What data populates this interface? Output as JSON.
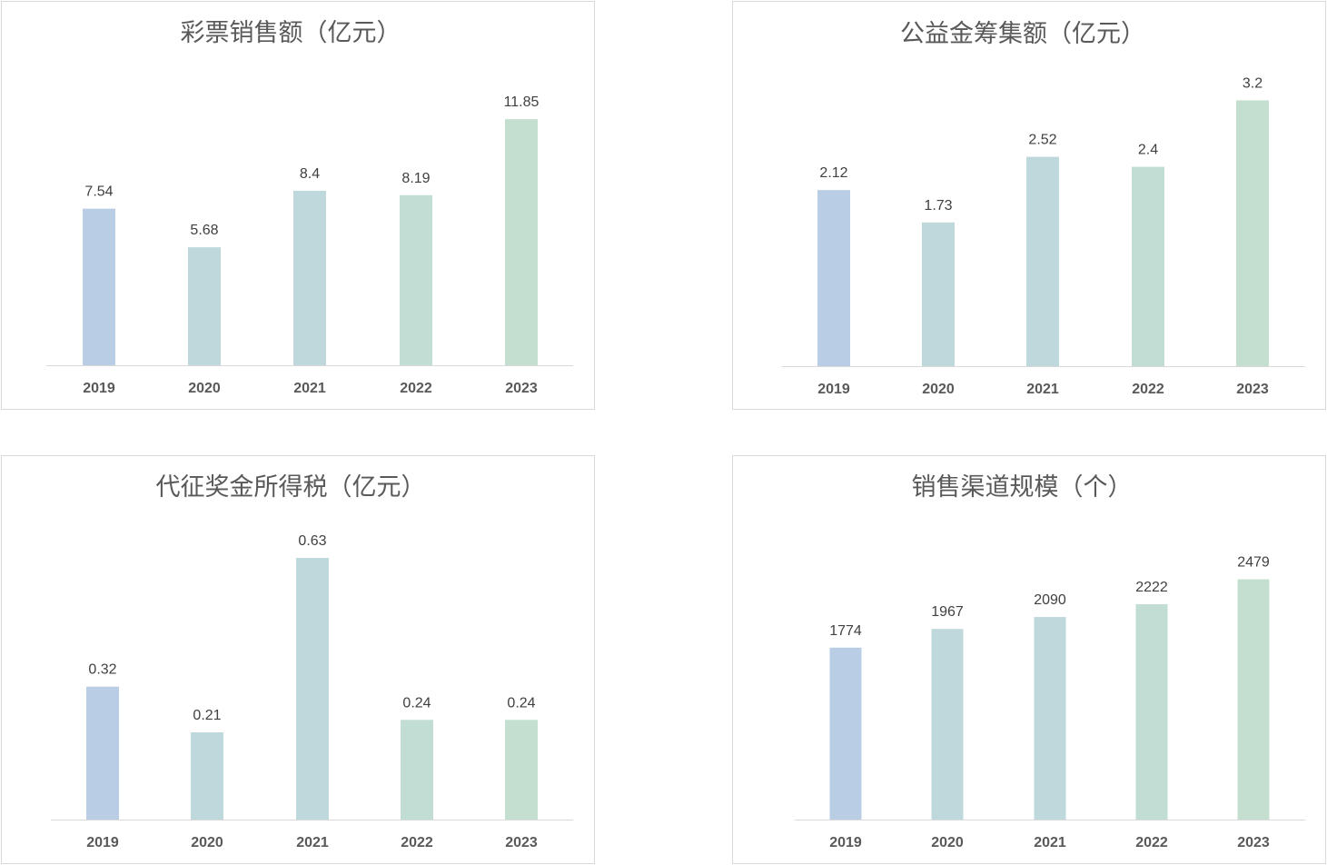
{
  "chart_data": [
    {
      "type": "bar",
      "title": "彩票销售额（亿元）",
      "categories": [
        "2019",
        "2020",
        "2021",
        "2022",
        "2023"
      ],
      "values": [
        7.54,
        5.68,
        8.4,
        8.19,
        11.85
      ],
      "ylim": [
        0,
        14
      ],
      "grid": false,
      "legend": false,
      "bar_colors": [
        "#B9CDE4",
        "#BFD8DC",
        "#BFD8DC",
        "#C2DDD4",
        "#C4DFD0"
      ]
    },
    {
      "type": "bar",
      "title": "公益金筹集额（亿元）",
      "categories": [
        "2019",
        "2020",
        "2021",
        "2022",
        "2023"
      ],
      "values": [
        2.12,
        1.73,
        2.52,
        2.4,
        3.2
      ],
      "ylim": [
        0,
        3.5
      ],
      "grid": false,
      "legend": false,
      "bar_colors": [
        "#B9CDE4",
        "#BFD8DC",
        "#BFD8DC",
        "#C2DDD4",
        "#C4DFD0"
      ]
    },
    {
      "type": "bar",
      "title": "代征奖金所得税（亿元）",
      "categories": [
        "2019",
        "2020",
        "2021",
        "2022",
        "2023"
      ],
      "values": [
        0.32,
        0.21,
        0.63,
        0.24,
        0.24
      ],
      "ylim": [
        0,
        0.7
      ],
      "grid": false,
      "legend": false,
      "bar_colors": [
        "#B9CDE4",
        "#BFD8DC",
        "#BFD8DC",
        "#C2DDD4",
        "#C4DFD0"
      ]
    },
    {
      "type": "bar",
      "title": "销售渠道规模（个）",
      "categories": [
        "2019",
        "2020",
        "2021",
        "2022",
        "2023"
      ],
      "values": [
        1774,
        1967,
        2090,
        2222,
        2479
      ],
      "ylim": [
        0,
        3000
      ],
      "grid": false,
      "legend": false,
      "bar_colors": [
        "#B9CDE4",
        "#BFD8DC",
        "#BFD8DC",
        "#C2DDD4",
        "#C4DFD0"
      ]
    }
  ]
}
